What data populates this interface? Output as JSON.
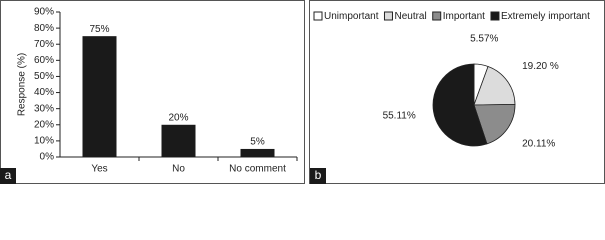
{
  "chart_data": [
    {
      "type": "bar",
      "panel_label": "a",
      "ylabel": "Response (%)",
      "categories": [
        "Yes",
        "No",
        "No comment"
      ],
      "values": [
        75,
        20,
        5
      ],
      "value_labels": [
        "75%",
        "20%",
        "5%"
      ],
      "color": "#1a1a1a",
      "ylim": [
        0,
        90
      ],
      "yticks": [
        {
          "value": 0,
          "label": "0%"
        },
        {
          "value": 10,
          "label": "10%"
        },
        {
          "value": 20,
          "label": "20%"
        },
        {
          "value": 30,
          "label": "30%"
        },
        {
          "value": 40,
          "label": "40%"
        },
        {
          "value": 50,
          "label": "50%"
        },
        {
          "value": 60,
          "label": "60%"
        },
        {
          "value": 70,
          "label": "70%"
        },
        {
          "value": 80,
          "label": "80%"
        },
        {
          "value": 90,
          "label": "90%"
        }
      ]
    },
    {
      "type": "pie",
      "panel_label": "b",
      "categories": [
        "Unimportant",
        "Neutral",
        "Important",
        "Extremely important"
      ],
      "values": [
        5.57,
        19.2,
        20.11,
        55.11
      ],
      "value_labels": [
        "5.57%",
        "19.20 %",
        "20.11%",
        "55.11%"
      ],
      "colors": [
        "#ffffff",
        "#dcdcdc",
        "#8c8c8c",
        "#1a1a1a"
      ],
      "legend": "top"
    }
  ]
}
